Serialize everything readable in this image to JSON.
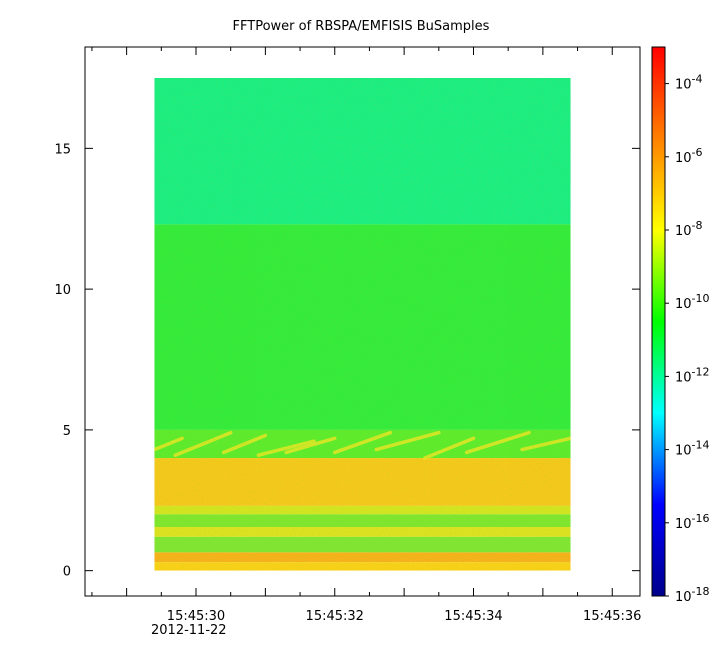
{
  "chart_data": {
    "type": "heatmap",
    "title": "FFTPower of RBSPA/EMFISIS  BuSamples",
    "xlabel": "",
    "ylabel": "",
    "x_tick_labels": [
      "15:45:30",
      "15:45:32",
      "15:45:34",
      "15:45:36"
    ],
    "x_date_label": "2012-11-22",
    "x_ticks_seconds": [
      30,
      32,
      34,
      36
    ],
    "x_minor_step_seconds": 0.5,
    "x_range_seconds": [
      28.4,
      36.4
    ],
    "data_x_range_seconds": [
      29.4,
      35.4
    ],
    "y_ticks": [
      0,
      5,
      10,
      15
    ],
    "y_range": [
      -0.9,
      18.6
    ],
    "data_y_range": [
      0,
      17.5
    ],
    "colorbar": {
      "scale": "log",
      "range_exponents": [
        -18,
        -3
      ],
      "tick_exponents": [
        -4,
        -6,
        -8,
        -10,
        -12,
        -14,
        -16,
        -18
      ],
      "tick_labels": [
        "10",
        "10",
        "10",
        "10",
        "10",
        "10",
        "10",
        "10"
      ],
      "tick_exponent_labels": [
        "-4",
        "-6",
        "-8",
        "-10",
        "-12",
        "-14",
        "-16",
        "-18"
      ],
      "colormap": "rainbow",
      "colors": [
        "#00008c",
        "#0000ff",
        "#00ffff",
        "#00ff00",
        "#ffff00",
        "#ff8000",
        "#ff0000"
      ]
    },
    "intensity_bands": [
      {
        "y_from": 12.3,
        "y_to": 17.5,
        "log10_power": -11.7,
        "color": "#17ef84"
      },
      {
        "y_from": 5.0,
        "y_to": 12.3,
        "log10_power": -10.5,
        "color": "#31ec3c"
      },
      {
        "y_from": 4.0,
        "y_to": 5.0,
        "log10_power": -9.8,
        "color": "#5cec2c"
      },
      {
        "y_from": 2.3,
        "y_to": 4.0,
        "log10_power": -7.5,
        "color": "#f9c81b"
      },
      {
        "y_from": 2.0,
        "y_to": 2.3,
        "log10_power": -8.5,
        "color": "#d6e620"
      },
      {
        "y_from": 1.55,
        "y_to": 2.0,
        "log10_power": -10.0,
        "color": "#7fe72f"
      },
      {
        "y_from": 1.2,
        "y_to": 1.55,
        "log10_power": -8.3,
        "color": "#e0e320"
      },
      {
        "y_from": 0.65,
        "y_to": 1.2,
        "log10_power": -10.0,
        "color": "#80e633"
      },
      {
        "y_from": 0.3,
        "y_to": 0.65,
        "log10_power": -7.2,
        "color": "#fbb11a"
      },
      {
        "y_from": 0,
        "y_to": 0.3,
        "log10_power": -7.8,
        "color": "#fdd117"
      }
    ],
    "chorus_elements": [
      {
        "t_start": 29.4,
        "t_end": 29.8,
        "f_start": 4.3,
        "f_end": 4.7
      },
      {
        "t_start": 29.7,
        "t_end": 30.5,
        "f_start": 4.1,
        "f_end": 4.9
      },
      {
        "t_start": 30.4,
        "t_end": 31.0,
        "f_start": 4.2,
        "f_end": 4.8
      },
      {
        "t_start": 30.9,
        "t_end": 31.7,
        "f_start": 4.1,
        "f_end": 4.6
      },
      {
        "t_start": 31.3,
        "t_end": 32.0,
        "f_start": 4.2,
        "f_end": 4.7
      },
      {
        "t_start": 32.0,
        "t_end": 32.8,
        "f_start": 4.2,
        "f_end": 4.9
      },
      {
        "t_start": 32.6,
        "t_end": 33.5,
        "f_start": 4.3,
        "f_end": 4.9
      },
      {
        "t_start": 33.3,
        "t_end": 34.0,
        "f_start": 4.0,
        "f_end": 4.7
      },
      {
        "t_start": 33.9,
        "t_end": 34.8,
        "f_start": 4.2,
        "f_end": 4.9
      },
      {
        "t_start": 34.7,
        "t_end": 35.4,
        "f_start": 4.3,
        "f_end": 4.7
      }
    ]
  }
}
